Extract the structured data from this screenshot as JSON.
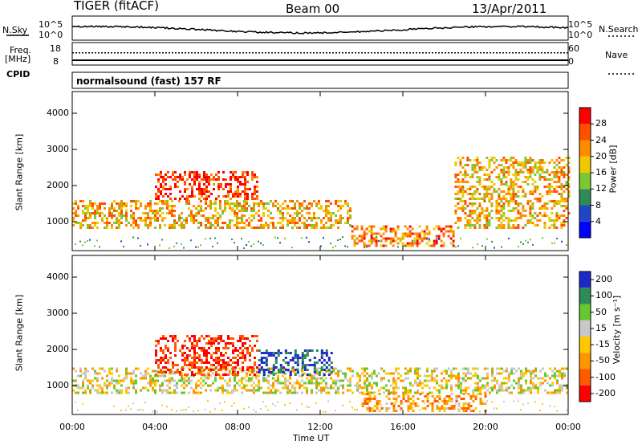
{
  "header": {
    "radar": "TIGER (fitACF)",
    "beam": "Beam 00",
    "date": "13/Apr/2011"
  },
  "side_labels": {
    "nsky": "N.Sky",
    "nsky_hi": "10^5",
    "nsky_lo": "10^0",
    "nsearch": "N.Search",
    "nsearch_hi": "10^5",
    "nsearch_lo": "10^0",
    "freq": "Freq.",
    "freq_unit": "[MHz]",
    "freq_hi": "18",
    "freq_lo": "8",
    "nave": "Nave",
    "nave_hi": "60",
    "nave_lo": "0",
    "cpid": "CPID",
    "cpid_text": "normalsound (fast) 157 RF"
  },
  "chart_data": [
    {
      "type": "heatmap",
      "name": "power-panel",
      "ylabel": "Slant Range [km]",
      "xlabel": "",
      "x_ticks": [
        "00:00",
        "04:00",
        "08:00",
        "12:00",
        "16:00",
        "20:00",
        "00:00"
      ],
      "x_range_hours": [
        0,
        24
      ],
      "y_ticks": [
        1000,
        2000,
        3000,
        4000
      ],
      "ylim": [
        200,
        4600
      ],
      "colorbar": {
        "label": "Power [dB]",
        "ticks": [
          "4",
          "8",
          "12",
          "16",
          "20",
          "24",
          "28"
        ],
        "range": [
          0,
          32
        ],
        "colors": [
          "#0000ff",
          "#1e46c8",
          "#2e8b57",
          "#7cc832",
          "#f0c800",
          "#ff8c00",
          "#ff5000",
          "#ff0000"
        ]
      },
      "features": [
        {
          "hours": [
            0,
            13.5
          ],
          "range_km": [
            800,
            1600
          ],
          "value": 20
        },
        {
          "hours": [
            4,
            9
          ],
          "range_km": [
            1600,
            2400
          ],
          "value": 28
        },
        {
          "hours": [
            13.5,
            18.5
          ],
          "range_km": [
            300,
            900
          ],
          "value": 24
        },
        {
          "hours": [
            18.5,
            24
          ],
          "range_km": [
            800,
            2800
          ],
          "value": 20
        }
      ]
    },
    {
      "type": "heatmap",
      "name": "velocity-panel",
      "ylabel": "Slant Range [km]",
      "xlabel": "Time UT",
      "x_ticks": [
        "00:00",
        "04:00",
        "08:00",
        "12:00",
        "16:00",
        "20:00",
        "00:00"
      ],
      "x_range_hours": [
        0,
        24
      ],
      "y_ticks": [
        1000,
        2000,
        3000,
        4000
      ],
      "ylim": [
        200,
        4600
      ],
      "colorbar": {
        "label": "Velocity [m s⁻¹]",
        "ticks": [
          "200",
          "100",
          "50",
          "15",
          "-15",
          "-50",
          "-100",
          "-200"
        ],
        "colors": [
          "#1e28c8",
          "#2e8b57",
          "#64c832",
          "#c8c8c8",
          "#ffc800",
          "#ff9600",
          "#ff5a00",
          "#ff0000"
        ]
      },
      "features": [
        {
          "hours": [
            0,
            24
          ],
          "range_km": [
            800,
            1500
          ],
          "value": 0
        },
        {
          "hours": [
            4,
            9
          ],
          "range_km": [
            1300,
            2400
          ],
          "value": -150
        },
        {
          "hours": [
            9,
            12.5
          ],
          "range_km": [
            1300,
            2000
          ],
          "value": 150
        },
        {
          "hours": [
            14,
            20
          ],
          "range_km": [
            300,
            800
          ],
          "value": -50
        }
      ]
    }
  ]
}
